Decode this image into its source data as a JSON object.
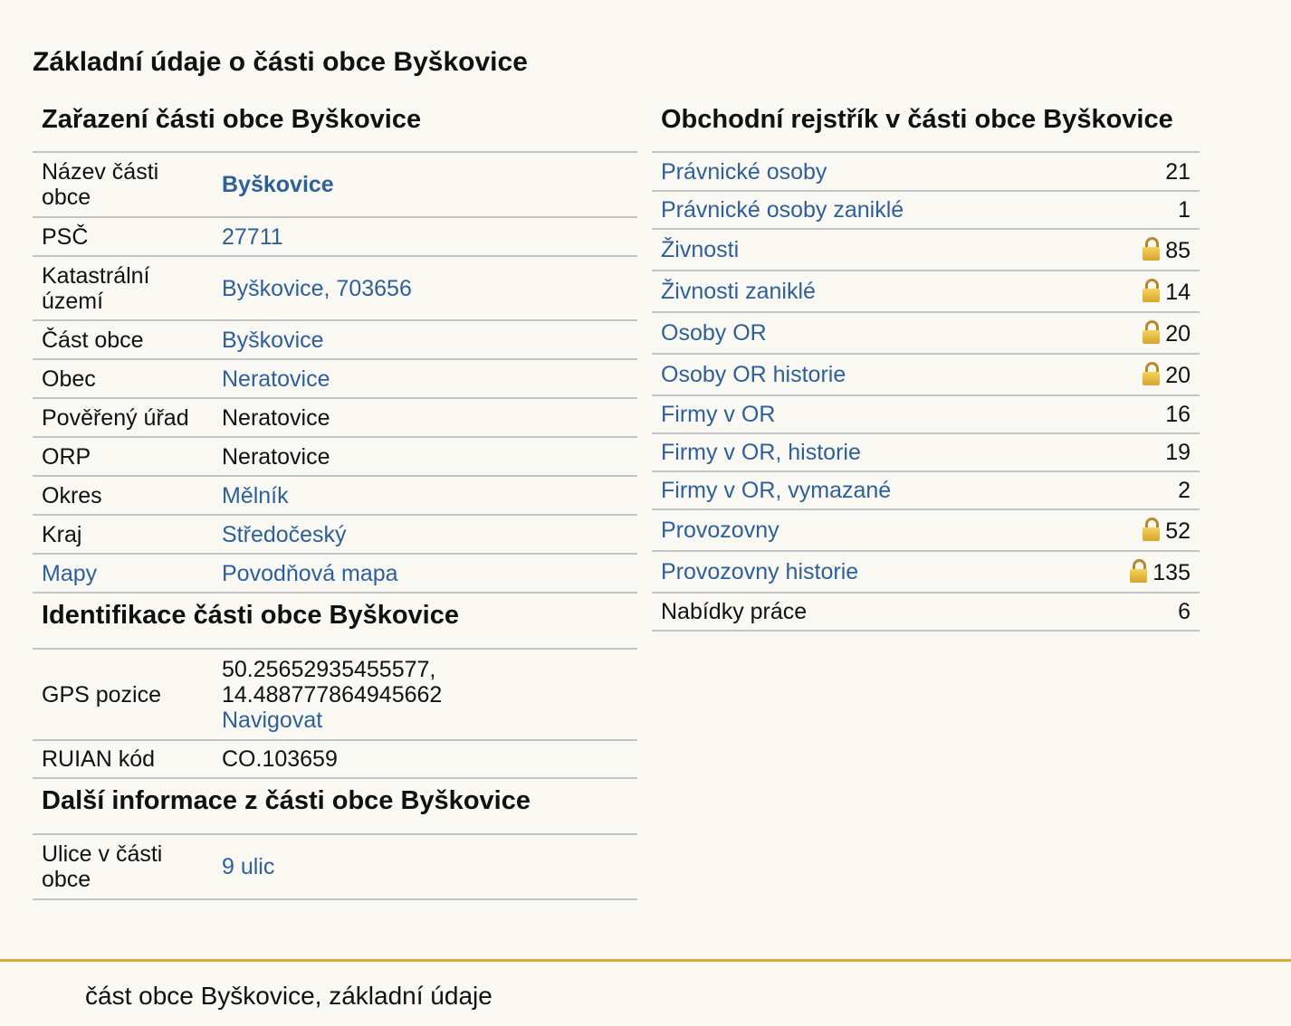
{
  "page_title": "Základní údaje o části obce Byškovice",
  "zarazeni": {
    "title": "Zařazení části obce Byškovice",
    "rows": [
      {
        "label": "Název části obce",
        "value": "Byškovice"
      },
      {
        "label": "PSČ",
        "value": "27711"
      },
      {
        "label": "Katastrální území",
        "value": "Byškovice, 703656"
      },
      {
        "label": "Část obce",
        "value": "Byškovice"
      },
      {
        "label": "Obec",
        "value": "Neratovice"
      },
      {
        "label": "Pověřený úřad",
        "value": "Neratovice"
      },
      {
        "label": "ORP",
        "value": "Neratovice"
      },
      {
        "label": "Okres",
        "value": "Mělník"
      },
      {
        "label": "Kraj",
        "value": "Středočeský"
      },
      {
        "label": "Mapy",
        "value": "Povodňová mapa"
      }
    ]
  },
  "identifikace": {
    "title": "Identifikace části obce Byškovice",
    "gps_label": "GPS pozice",
    "gps_lat": "50.25652935455577,",
    "gps_lon": "14.488777864945662",
    "navigate": "Navigovat",
    "ruian_label": "RUIAN kód",
    "ruian_value": "CO.103659"
  },
  "dalsi": {
    "title": "Další informace z části obce Byškovice",
    "ulice_label": "Ulice v části obce",
    "ulice_value": "9 ulic"
  },
  "rejstrik": {
    "title": "Obchodní rejstřík v části obce Byškovice",
    "rows": [
      {
        "label": "Právnické osoby",
        "value": "21"
      },
      {
        "label": "Právnické osoby zaniklé",
        "value": "1"
      },
      {
        "label": "Živnosti",
        "value": "85"
      },
      {
        "label": "Živnosti zaniklé",
        "value": "14"
      },
      {
        "label": "Osoby OR",
        "value": "20"
      },
      {
        "label": "Osoby OR historie",
        "value": "20"
      },
      {
        "label": "Firmy v OR",
        "value": "16"
      },
      {
        "label": "Firmy v OR, historie",
        "value": "19"
      },
      {
        "label": "Firmy v OR, vymazané",
        "value": "2"
      },
      {
        "label": "Provozovny",
        "value": "52"
      },
      {
        "label": "Provozovny historie",
        "value": "135"
      },
      {
        "label": "Nabídky práce",
        "value": "6"
      }
    ]
  },
  "icons": {
    "lock": "lock-icon"
  },
  "colors": {
    "link": "#2d5f9b",
    "footer_line": "#d4a83a",
    "background": "#f9f8f3"
  },
  "footer": "část obce Byškovice, základní údaje"
}
